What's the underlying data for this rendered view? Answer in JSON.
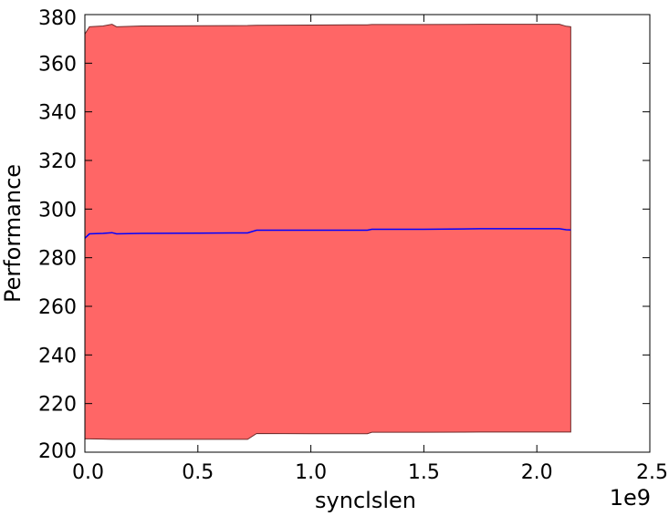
{
  "chart_data": {
    "type": "area",
    "title": "",
    "xlabel": "synclslen",
    "ylabel": "Performance",
    "x_offset_label": "1e9",
    "xlim": [
      0,
      2.5
    ],
    "ylim": [
      200,
      380
    ],
    "x_scale_factor": 1000000000,
    "xticks": [
      0.0,
      0.5,
      1.0,
      1.5,
      2.0,
      2.5
    ],
    "xtick_labels": [
      "0.0",
      "0.5",
      "1.0",
      "1.5",
      "2.0",
      "2.5"
    ],
    "yticks": [
      200,
      220,
      240,
      260,
      280,
      300,
      320,
      340,
      360,
      380
    ],
    "ytick_labels": [
      "200",
      "220",
      "240",
      "260",
      "280",
      "300",
      "320",
      "340",
      "360",
      "380"
    ],
    "grid": false,
    "legend": "none",
    "x": [
      0.0,
      0.02,
      0.08,
      0.12,
      0.14,
      0.25,
      0.5,
      0.72,
      0.76,
      1.0,
      1.25,
      1.27,
      1.5,
      1.75,
      2.0,
      2.1,
      2.13,
      2.15
    ],
    "series": [
      {
        "values": [
          288.0,
          289.8,
          290.0,
          290.3,
          289.8,
          290.0,
          290.1,
          290.2,
          291.3,
          291.3,
          291.3,
          291.7,
          291.7,
          291.9,
          291.9,
          291.9,
          291.5,
          291.4
        ],
        "color": "#0000ff",
        "lower": [
          205.5,
          205.5,
          205.4,
          205.3,
          205.3,
          205.3,
          205.3,
          205.3,
          207.7,
          207.6,
          207.6,
          208.2,
          208.2,
          208.3,
          208.3,
          208.3,
          208.3,
          208.3
        ],
        "upper": [
          372.0,
          375.0,
          375.3,
          376.0,
          375.0,
          375.3,
          375.4,
          375.5,
          375.6,
          375.7,
          375.8,
          375.9,
          375.9,
          376.0,
          376.0,
          376.0,
          375.2,
          375.0
        ],
        "band_color": "#ff6666"
      }
    ],
    "colors": {
      "line": "#0000ff",
      "band": "#ff6666",
      "band_edge": "#6e2a2a",
      "axes": "#000000",
      "background": "#ffffff"
    }
  }
}
